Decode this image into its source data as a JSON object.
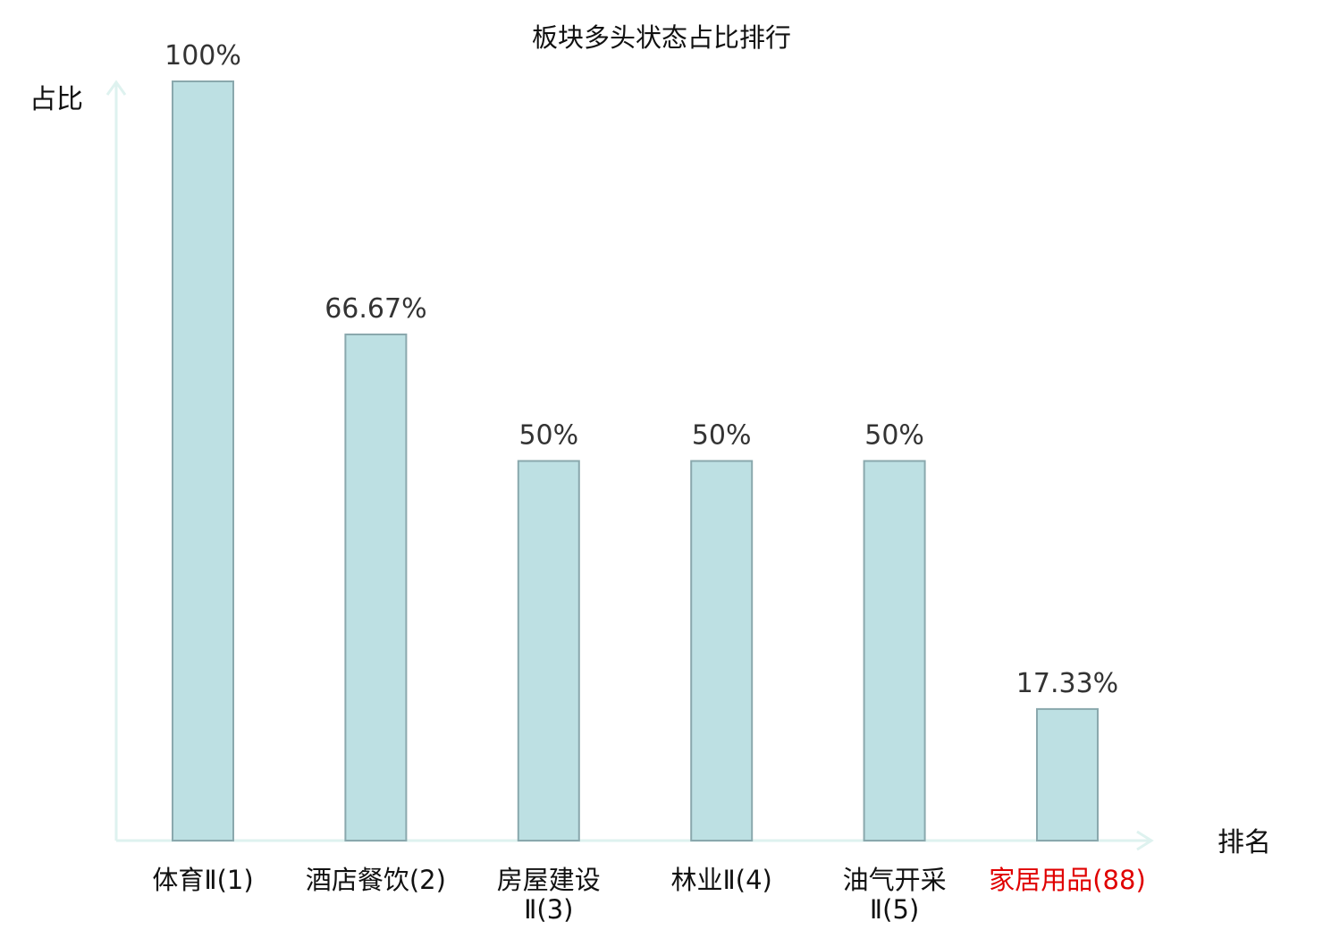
{
  "chart_data": {
    "type": "bar",
    "title": "板块多头状态占比排行",
    "xlabel": "排名",
    "ylabel": "占比",
    "ylim": [
      0,
      100
    ],
    "grid": false,
    "legend": "none",
    "categories": [
      {
        "name": "体育Ⅱ",
        "rank": "(1)",
        "lines": [
          "体育Ⅱ(1)"
        ],
        "highlight": false
      },
      {
        "name": "酒店餐饮",
        "rank": "(2)",
        "lines": [
          "酒店餐饮(2)"
        ],
        "highlight": false
      },
      {
        "name": "房屋建设Ⅱ",
        "rank": "(3)",
        "lines": [
          "房屋建设",
          "Ⅱ(3)"
        ],
        "highlight": false
      },
      {
        "name": "林业Ⅱ",
        "rank": "(4)",
        "lines": [
          "林业Ⅱ(4)"
        ],
        "highlight": false
      },
      {
        "name": "油气开采Ⅱ",
        "rank": "(5)",
        "lines": [
          "油气开采",
          "Ⅱ(5)"
        ],
        "highlight": false
      },
      {
        "name": "家居用品",
        "rank": "(88)",
        "lines": [
          "家居用品(88)"
        ],
        "highlight": true
      }
    ],
    "values": [
      100,
      66.67,
      50,
      50,
      50,
      17.33
    ],
    "value_labels": [
      "100%",
      "66.67%",
      "50%",
      "50%",
      "50%",
      "17.33%"
    ]
  },
  "colors": {
    "bar_fill": "#bde0e3",
    "bar_stroke": "#8aa8ad",
    "axis": "#def2ef",
    "label_default": "#111111",
    "label_highlight": "#e00000",
    "value_label": "#333333"
  }
}
